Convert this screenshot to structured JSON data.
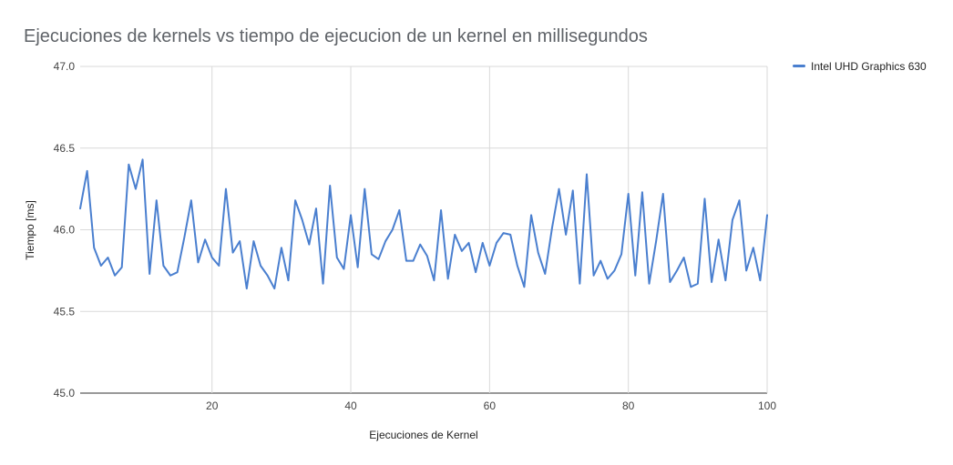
{
  "chart_data": {
    "type": "line",
    "title": "Ejecuciones de kernels vs tiempo de ejecucion de un kernel en millisegundos",
    "xlabel": "Ejecuciones de Kernel",
    "ylabel": "Tiempo [ms]",
    "xlim": [
      1,
      100
    ],
    "ylim": [
      45.0,
      47.0
    ],
    "x_ticks": [
      20,
      40,
      60,
      80,
      100
    ],
    "y_ticks": [
      45.0,
      45.5,
      46.0,
      46.5,
      47.0
    ],
    "y_tick_labels": [
      "45.0",
      "45.5",
      "46.0",
      "46.5",
      "47.0"
    ],
    "grid": true,
    "legend_position": "top-right",
    "series": [
      {
        "name": "Intel UHD Graphics 630",
        "color": "#4a7fcf",
        "x": [
          1,
          2,
          3,
          4,
          5,
          6,
          7,
          8,
          9,
          10,
          11,
          12,
          13,
          14,
          15,
          16,
          17,
          18,
          19,
          20,
          21,
          22,
          23,
          24,
          25,
          26,
          27,
          28,
          29,
          30,
          31,
          32,
          33,
          34,
          35,
          36,
          37,
          38,
          39,
          40,
          41,
          42,
          43,
          44,
          45,
          46,
          47,
          48,
          49,
          50,
          51,
          52,
          53,
          54,
          55,
          56,
          57,
          58,
          59,
          60,
          61,
          62,
          63,
          64,
          65,
          66,
          67,
          68,
          69,
          70,
          71,
          72,
          73,
          74,
          75,
          76,
          77,
          78,
          79,
          80,
          81,
          82,
          83,
          84,
          85,
          86,
          87,
          88,
          89,
          90,
          91,
          92,
          93,
          94,
          95,
          96,
          97,
          98,
          99,
          100
        ],
        "values": [
          46.13,
          46.36,
          45.89,
          45.78,
          45.83,
          45.72,
          45.77,
          46.4,
          46.25,
          46.43,
          45.73,
          46.18,
          45.78,
          45.72,
          45.74,
          45.95,
          46.18,
          45.8,
          45.94,
          45.83,
          45.78,
          46.25,
          45.86,
          45.93,
          45.64,
          45.93,
          45.78,
          45.72,
          45.64,
          45.89,
          45.69,
          46.18,
          46.06,
          45.91,
          46.13,
          45.67,
          46.27,
          45.83,
          45.76,
          46.09,
          45.77,
          46.25,
          45.85,
          45.82,
          45.93,
          46.0,
          46.12,
          45.81,
          45.81,
          45.91,
          45.84,
          45.69,
          46.12,
          45.7,
          45.97,
          45.87,
          45.92,
          45.74,
          45.92,
          45.78,
          45.92,
          45.98,
          45.97,
          45.78,
          45.65,
          46.09,
          45.86,
          45.73,
          46.01,
          46.25,
          45.97,
          46.24,
          45.67,
          46.34,
          45.72,
          45.81,
          45.7,
          45.75,
          45.85,
          46.22,
          45.72,
          46.23,
          45.67,
          45.93,
          46.22,
          45.68,
          45.75,
          45.83,
          45.65,
          45.67,
          46.19,
          45.68,
          45.94,
          45.69,
          46.06,
          46.18,
          45.75,
          45.89,
          45.69,
          46.09
        ]
      }
    ]
  }
}
